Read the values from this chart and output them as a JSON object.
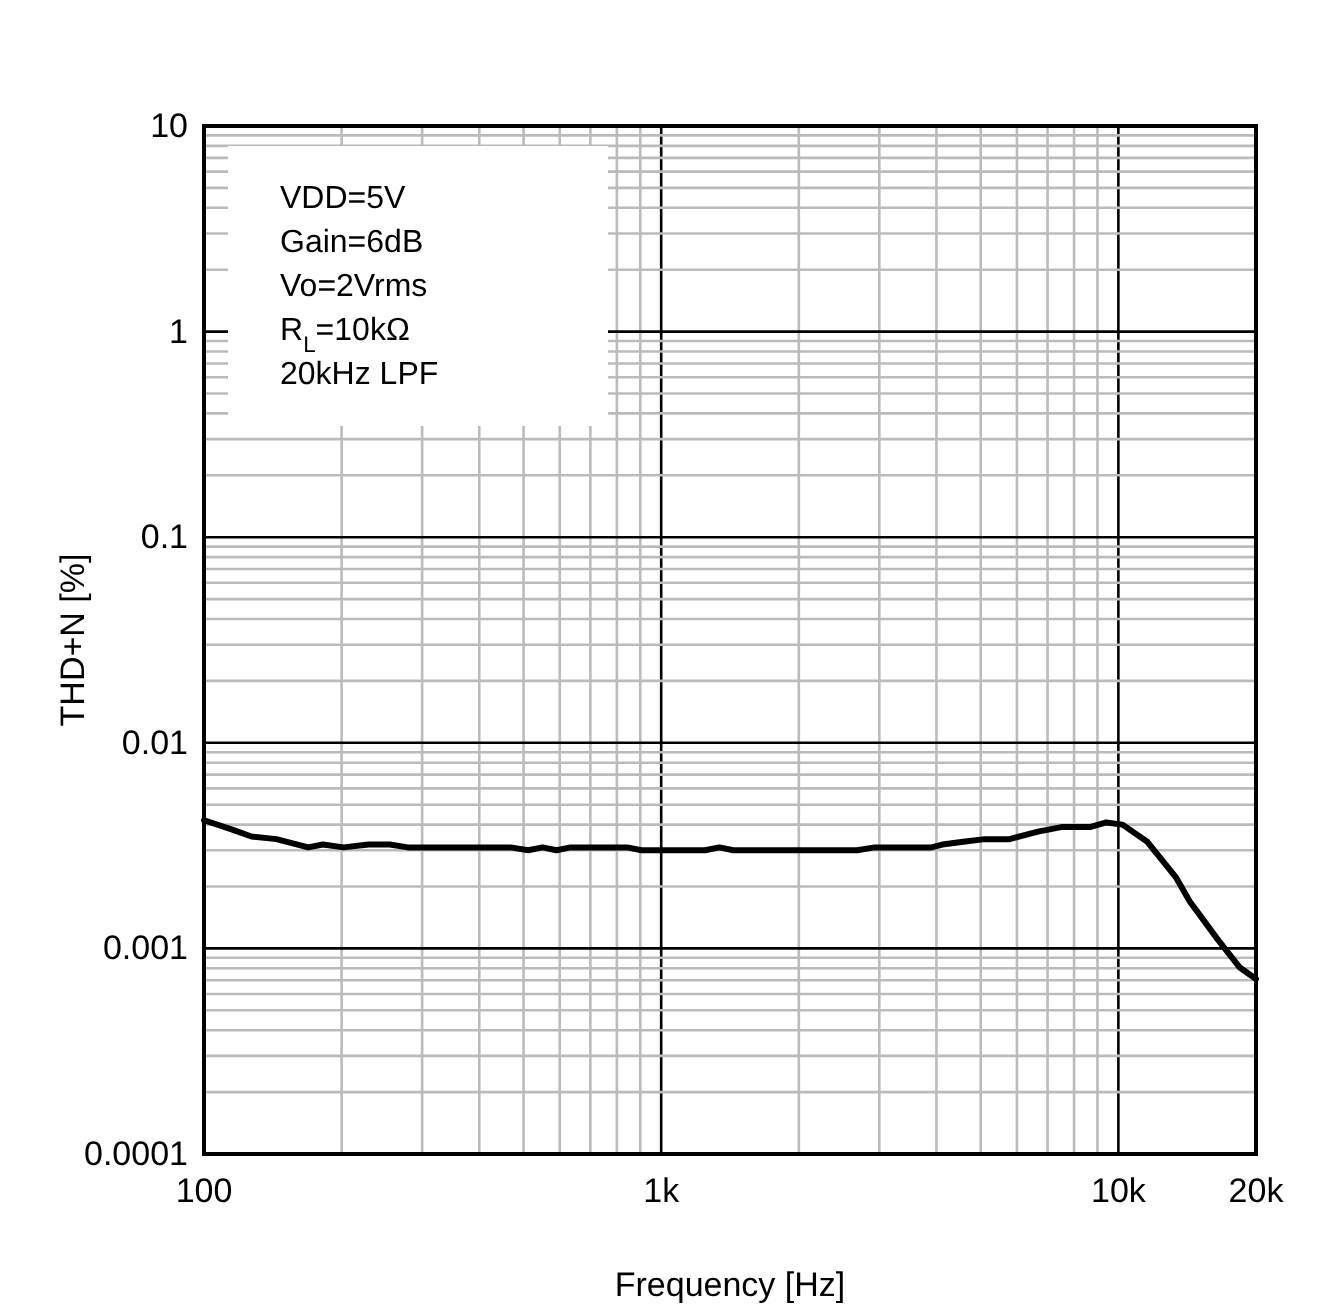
{
  "chart_data": {
    "type": "line",
    "xlabel": "Frequency [Hz]",
    "ylabel": "THD+N [%]",
    "log": "xy",
    "grid": true,
    "marker": "none",
    "line_style": "solid",
    "xlim": [
      100,
      20000
    ],
    "xticks": [
      100,
      {
        "value": 1000,
        "label": "1k"
      },
      {
        "value": 10000,
        "label": "10k"
      },
      {
        "value": 20000,
        "label": "20k"
      }
    ],
    "ylim": [
      0.0001,
      10
    ],
    "yticks": [
      0.0001,
      0.001,
      0.01,
      0.1,
      1,
      10
    ],
    "annotations": [
      "VDD=5V",
      "Gain=6dB",
      "Vo=2Vrms",
      "R$_{L}$=10kΩ",
      "20kHz LPF"
    ],
    "series": [
      {
        "color": "#000000",
        "x": [
          100,
          114.5,
          127,
          144,
          169,
          182,
          202,
          229,
          255,
          279,
          468,
          512,
          550,
          590,
          634,
          843,
          905,
          1247,
          1340,
          1438,
          2683,
          2933,
          3900,
          4120,
          4580,
          5100,
          5780,
          6670,
          7550,
          8700,
          9410,
          10210,
          11570,
          13340,
          14330,
          16520,
          18400,
          20000
        ],
        "values": [
          0.0042,
          0.0038,
          0.0035,
          0.0034,
          0.0031,
          0.0032,
          0.0031,
          0.0032,
          0.0032,
          0.0031,
          0.0031,
          0.003,
          0.0031,
          0.003,
          0.0031,
          0.0031,
          0.003,
          0.003,
          0.0031,
          0.003,
          0.003,
          0.0031,
          0.0031,
          0.0032,
          0.0033,
          0.0034,
          0.0034,
          0.0037,
          0.0039,
          0.0039,
          0.0041,
          0.004,
          0.0033,
          0.00223,
          0.00169,
          0.0011,
          0.00081,
          0.00071
        ]
      }
    ]
  }
}
